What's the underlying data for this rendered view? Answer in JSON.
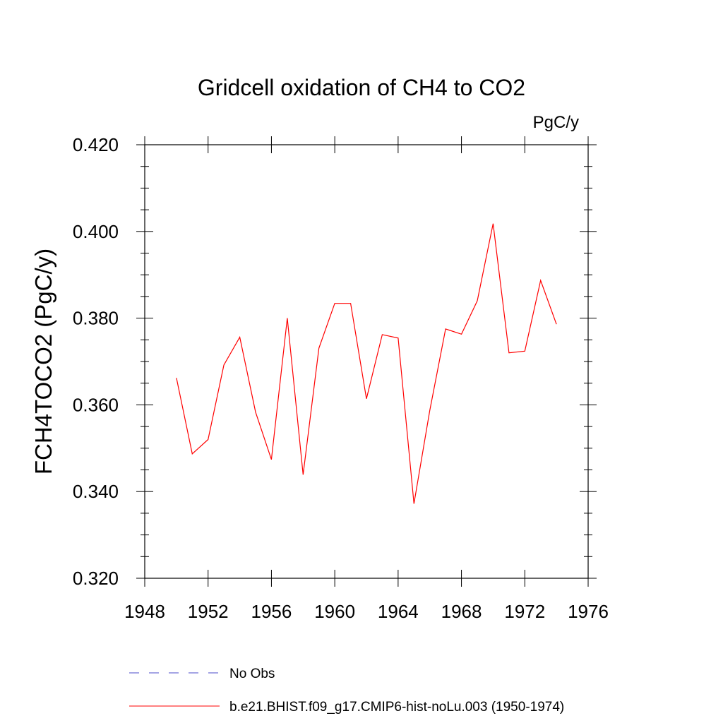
{
  "chart_data": {
    "type": "line",
    "title": "Gridcell oxidation of CH4 to CO2",
    "units": "PgC/y",
    "xlabel": "",
    "ylabel": "FCH4TOCO2  (PgC/y)",
    "xlim": [
      1948,
      1976
    ],
    "ylim": [
      0.32,
      0.42
    ],
    "xticks": [
      "1948",
      "1952",
      "1956",
      "1960",
      "1964",
      "1968",
      "1972",
      "1976"
    ],
    "yticks": [
      "0.320",
      "0.340",
      "0.360",
      "0.380",
      "0.400",
      "0.420"
    ],
    "grid": false,
    "legend_position": "bottom",
    "series": [
      {
        "name": "b.e21.BHIST.f09_g17.CMIP6-hist-noLu.003 (1950-1974)",
        "color": "#ff0000",
        "style": "solid",
        "x": [
          1950,
          1951,
          1952,
          1953,
          1954,
          1955,
          1956,
          1957,
          1958,
          1959,
          1960,
          1961,
          1962,
          1963,
          1964,
          1965,
          1966,
          1967,
          1968,
          1969,
          1970,
          1971,
          1972,
          1973,
          1974
        ],
        "y": [
          0.3662,
          0.3487,
          0.352,
          0.3692,
          0.3756,
          0.3583,
          0.3474,
          0.38,
          0.3439,
          0.3731,
          0.3834,
          0.3834,
          0.3614,
          0.3762,
          0.3754,
          0.3372,
          0.3587,
          0.3775,
          0.3763,
          0.384,
          0.4018,
          0.372,
          0.3724,
          0.3887,
          0.3786
        ]
      }
    ],
    "legend": [
      {
        "label": "No Obs",
        "color": "#4b4bc8",
        "style": "dashed"
      },
      {
        "label": "b.e21.BHIST.f09_g17.CMIP6-hist-noLu.003 (1950-1974)",
        "color": "#ff0000",
        "style": "solid"
      }
    ]
  }
}
